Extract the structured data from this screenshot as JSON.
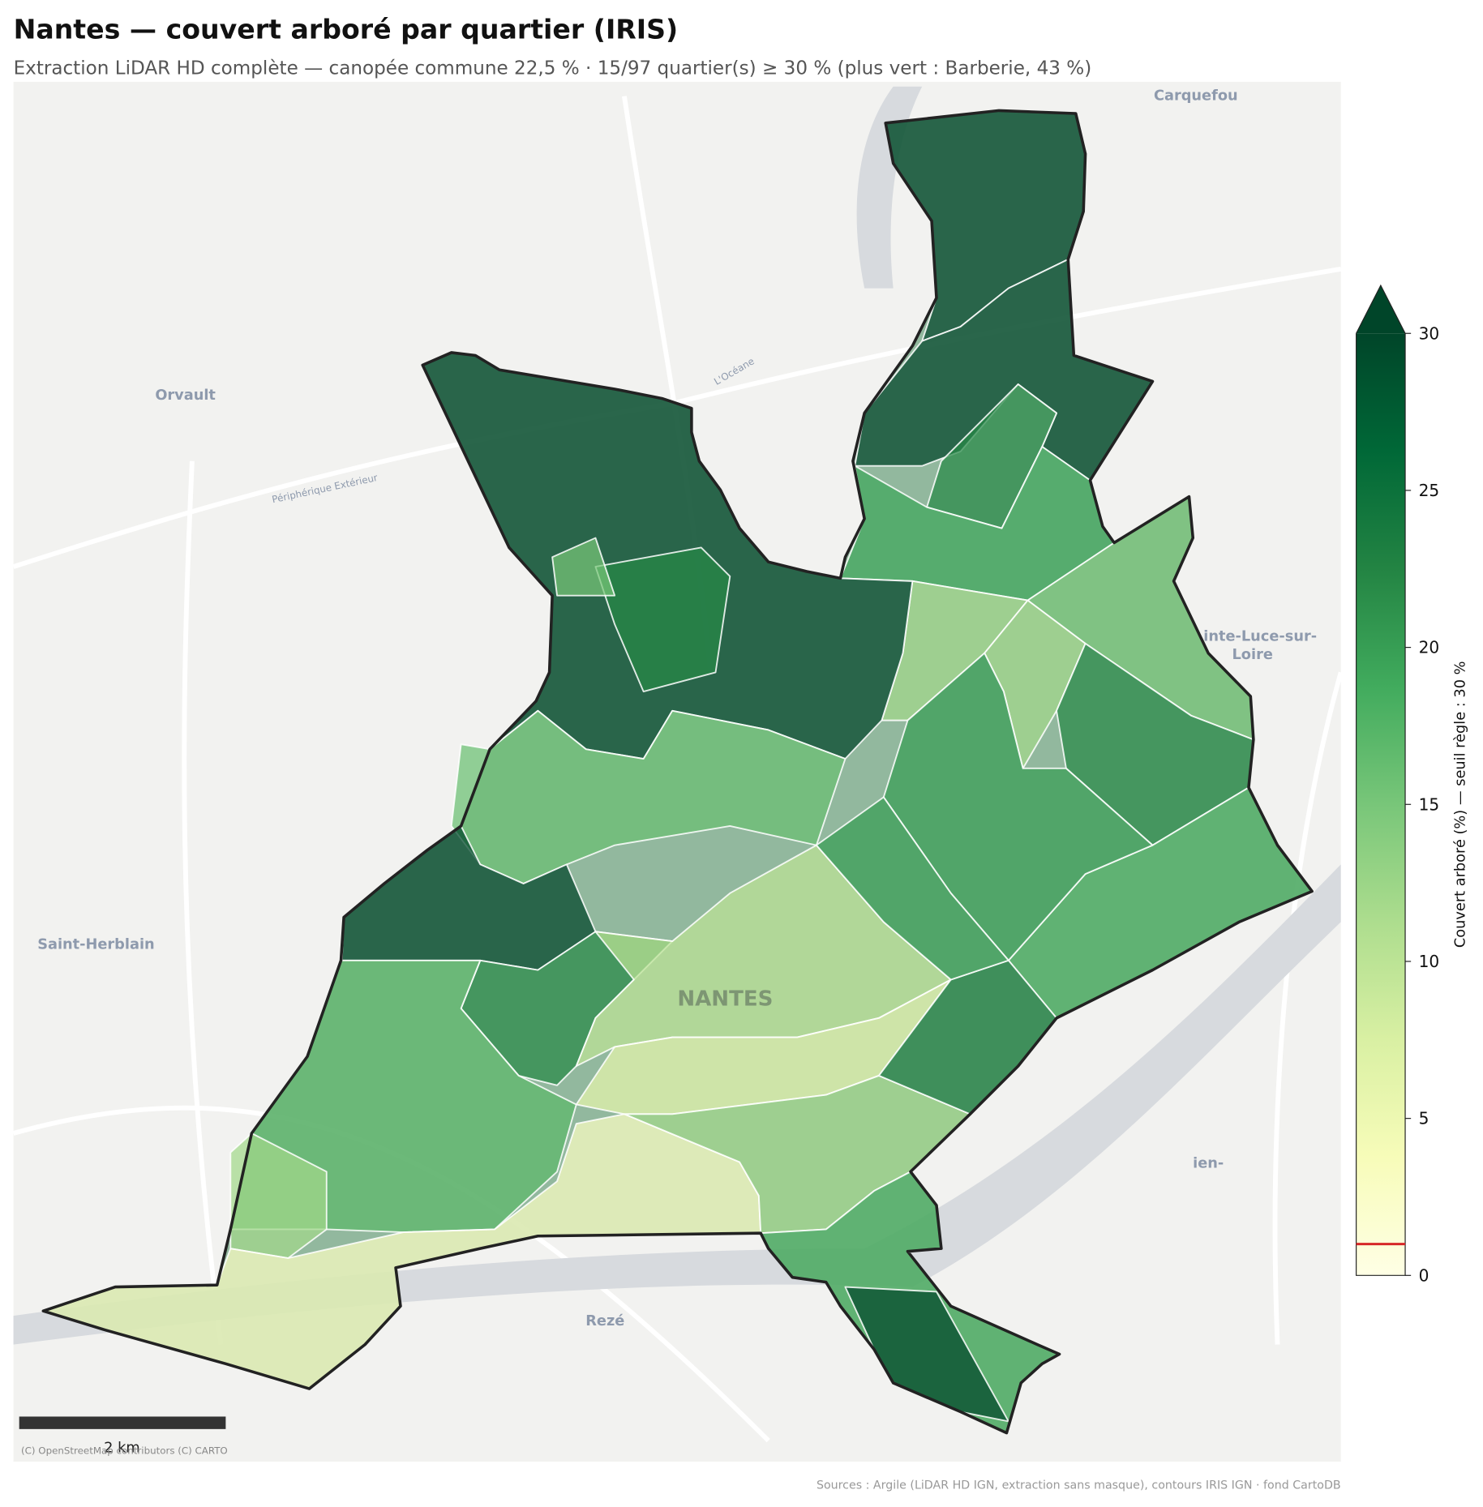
{
  "chart_data": {
    "type": "choropleth",
    "title": "Nantes — couvert arboré par quartier (IRIS)",
    "subtitle": "Extraction LiDAR HD complète — canopée commune 22,5 % · 15/97 quartier(s) ≥ 30 % (plus vert : Barberie, 43 %)",
    "values": [
      38,
      36,
      22,
      19,
      15,
      12,
      12,
      22,
      18,
      20,
      35,
      22,
      15,
      16,
      35,
      22,
      17,
      12,
      3,
      10,
      6,
      12,
      23,
      18,
      34,
      20
    ],
    "colormap": "YlGn",
    "colorbar": {
      "label": "Couvert arboré (%) — seuil règle : 30 %",
      "lim": [
        0,
        30
      ],
      "ticks": [
        0,
        5,
        10,
        15,
        20,
        25,
        30
      ],
      "extend": "max",
      "threshold": 1,
      "threshold_color": "#d62728"
    },
    "scale_bar": "2 km",
    "attribution": "(C) OpenStreetMap contributors (C) CARTO",
    "source": "Sources : Argile (LiDAR HD IGN, extraction sans masque), contours IRIS IGN · fond CartoDB"
  },
  "basemap_labels": [
    "Carquefou",
    "Orvault",
    "Saint-Herblain",
    "inte-Luce-sur-",
    "Loire",
    "Rezé",
    "NANTES",
    "ien-",
    "Périphérique Extérieur",
    "L'Océane"
  ]
}
